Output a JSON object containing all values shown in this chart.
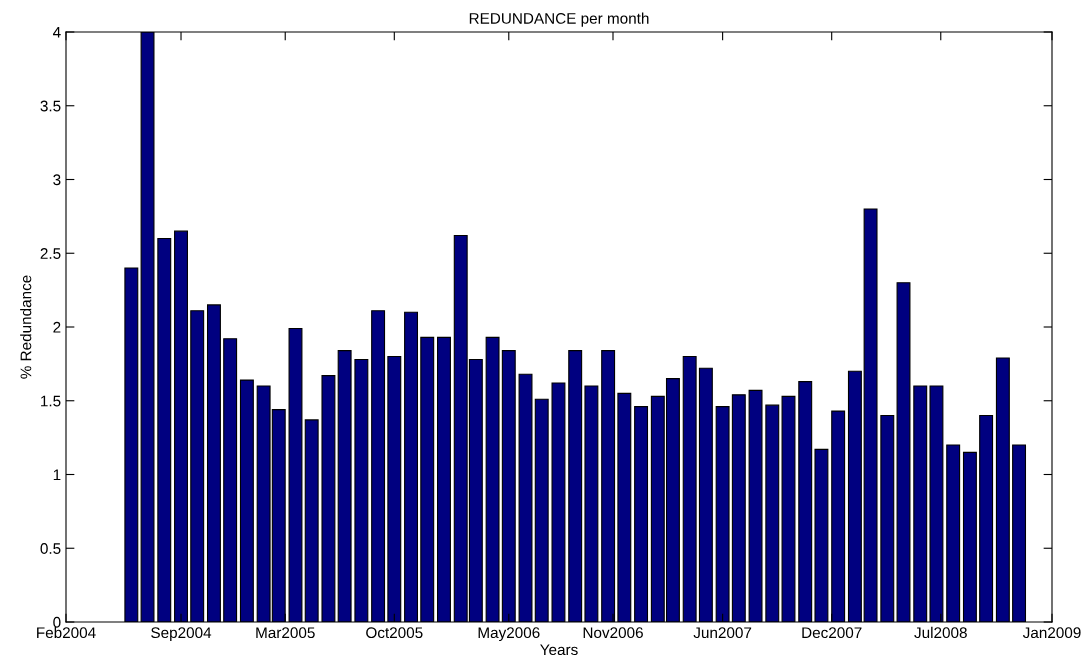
{
  "chart_data": {
    "type": "bar",
    "title": "REDUNDANCE per month",
    "xlabel": "Years",
    "ylabel": "% Redundance",
    "x": [
      "2004-06",
      "2004-07",
      "2004-08",
      "2004-09",
      "2004-10",
      "2004-11",
      "2004-12",
      "2005-01",
      "2005-02",
      "2005-03",
      "2005-04",
      "2005-05",
      "2005-06",
      "2005-07",
      "2005-08",
      "2005-09",
      "2005-10",
      "2005-11",
      "2005-12",
      "2006-01",
      "2006-02",
      "2006-03",
      "2006-04",
      "2006-05",
      "2006-06",
      "2006-07",
      "2006-08",
      "2006-09",
      "2006-10",
      "2006-11",
      "2006-12",
      "2007-01",
      "2007-02",
      "2007-03",
      "2007-04",
      "2007-05",
      "2007-06",
      "2007-07",
      "2007-08",
      "2007-09",
      "2007-10",
      "2007-11",
      "2007-12",
      "2008-01",
      "2008-02",
      "2008-03",
      "2008-04",
      "2008-05",
      "2008-06",
      "2008-07",
      "2008-08",
      "2008-09",
      "2008-10",
      "2008-11",
      "2008-12"
    ],
    "values": [
      2.4,
      4.0,
      2.6,
      2.65,
      2.11,
      2.15,
      1.92,
      1.64,
      1.6,
      1.44,
      1.99,
      1.37,
      1.67,
      1.84,
      1.78,
      2.11,
      1.8,
      2.1,
      1.93,
      1.93,
      2.62,
      1.78,
      1.93,
      1.84,
      1.68,
      1.51,
      1.62,
      1.84,
      1.6,
      1.84,
      1.55,
      1.46,
      1.53,
      1.65,
      1.8,
      1.72,
      1.46,
      1.54,
      1.57,
      1.47,
      1.53,
      1.63,
      1.17,
      1.43,
      1.7,
      2.8,
      1.4,
      2.3,
      1.6,
      1.6,
      1.2,
      1.15,
      1.4,
      1.79,
      1.2
    ],
    "color": "#000080",
    "xlim": [
      "2004-02-01",
      "2009-01-31"
    ],
    "xticks": [
      {
        "value": "2004-02-01",
        "label": "Feb2004"
      },
      {
        "value": "2004-09-01",
        "label": "Sep2004"
      },
      {
        "value": "2005-03-13",
        "label": "Mar2005"
      },
      {
        "value": "2005-10-01",
        "label": "Oct2005"
      },
      {
        "value": "2006-05-01",
        "label": "May2006"
      },
      {
        "value": "2006-11-10",
        "label": "Nov2006"
      },
      {
        "value": "2007-06-01",
        "label": "Jun2007"
      },
      {
        "value": "2007-12-20",
        "label": "Dec2007"
      },
      {
        "value": "2008-07-09",
        "label": "Jul2008"
      },
      {
        "value": "2009-01-31",
        "label": "Jan2009"
      }
    ],
    "ylim": [
      0,
      4
    ],
    "yticks": [
      0,
      0.5,
      1,
      1.5,
      2,
      2.5,
      3,
      3.5,
      4
    ],
    "grid": false
  }
}
